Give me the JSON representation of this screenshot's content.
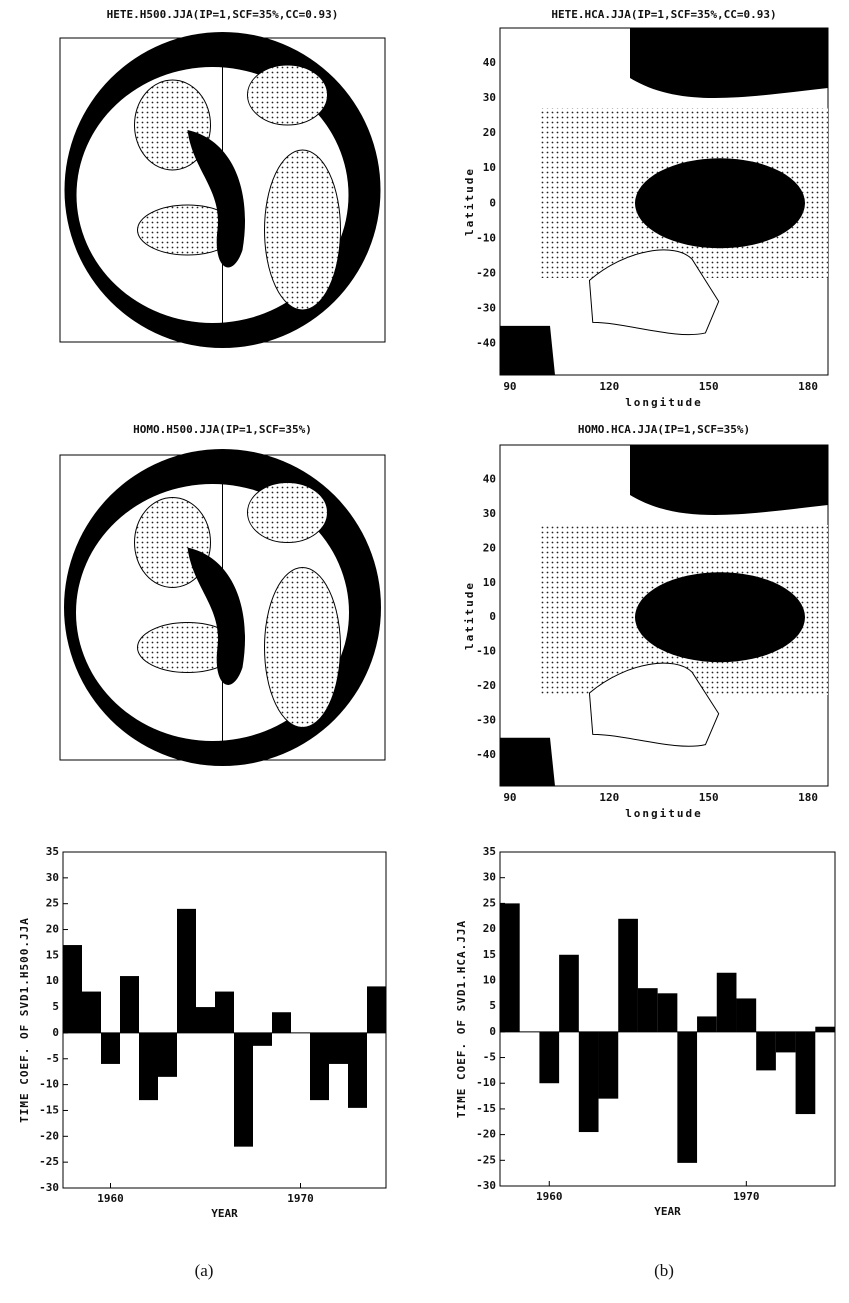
{
  "maps": [
    {
      "title": "HETE.H500.JJA(IP=1,SCF=35%,CC=0.93)",
      "kind": "polar"
    },
    {
      "title": "HETE.HCA.JJA(IP=1,SCF=35%,CC=0.93)",
      "kind": "lat-lon",
      "xlabel": "longitude",
      "ylabel": "latitude",
      "xlim": [
        87,
        186
      ],
      "ylim": [
        -49,
        50
      ],
      "xticks": [
        90,
        120,
        150,
        180
      ],
      "yticks": [
        40,
        30,
        20,
        10,
        0,
        -10,
        -20,
        -30,
        -40
      ]
    },
    {
      "title": "HOMO.H500.JJA(IP=1,SCF=35%)",
      "kind": "polar"
    },
    {
      "title": "HOMO.HCA.JJA(IP=1,SCF=35%)",
      "kind": "lat-lon",
      "xlabel": "longitude",
      "ylabel": "latitude",
      "xlim": [
        87,
        186
      ],
      "ylim": [
        -49,
        50
      ],
      "xticks": [
        90,
        120,
        150,
        180
      ],
      "yticks": [
        40,
        30,
        20,
        10,
        0,
        -10,
        -20,
        -30,
        -40
      ]
    }
  ],
  "chart_data": [
    {
      "type": "bar",
      "ylabel": "TIME COEF. OF SVD1.H500.JJA",
      "xlabel": "YEAR",
      "color": "#000000",
      "x": [
        1958,
        1959,
        1960,
        1961,
        1962,
        1963,
        1964,
        1965,
        1966,
        1967,
        1968,
        1969,
        1970,
        1971,
        1972,
        1973,
        1974
      ],
      "values": [
        17,
        8,
        -6,
        11,
        -13,
        -8.5,
        24,
        5,
        8,
        -22,
        -2.5,
        4,
        0,
        -13,
        -6,
        -14.5,
        9
      ],
      "xlim": [
        1957.5,
        1974.5
      ],
      "xticks": [
        1960,
        1970
      ],
      "ylim": [
        -30,
        35
      ],
      "yticks": [
        -30,
        -25,
        -20,
        -15,
        -10,
        -5,
        0,
        5,
        10,
        15,
        20,
        25,
        30,
        35
      ]
    },
    {
      "type": "bar",
      "ylabel": "TIME COEF. OF SVD1.HCA.JJA",
      "xlabel": "YEAR",
      "color": "#000000",
      "x": [
        1958,
        1959,
        1960,
        1961,
        1962,
        1963,
        1964,
        1965,
        1966,
        1967,
        1968,
        1969,
        1970,
        1971,
        1972,
        1973,
        1974
      ],
      "values": [
        25,
        0,
        -10,
        15,
        -19.5,
        -13,
        22,
        8.5,
        7.5,
        -25.5,
        3,
        11.5,
        6.5,
        -7.5,
        -4,
        -16,
        1
      ],
      "xlim": [
        1957.5,
        1974.5
      ],
      "xticks": [
        1960,
        1970
      ],
      "ylim": [
        -30,
        35
      ],
      "yticks": [
        -30,
        -25,
        -20,
        -15,
        -10,
        -5,
        0,
        5,
        10,
        15,
        20,
        25,
        30,
        35
      ]
    }
  ],
  "captions": [
    "(a)",
    "(b)"
  ]
}
